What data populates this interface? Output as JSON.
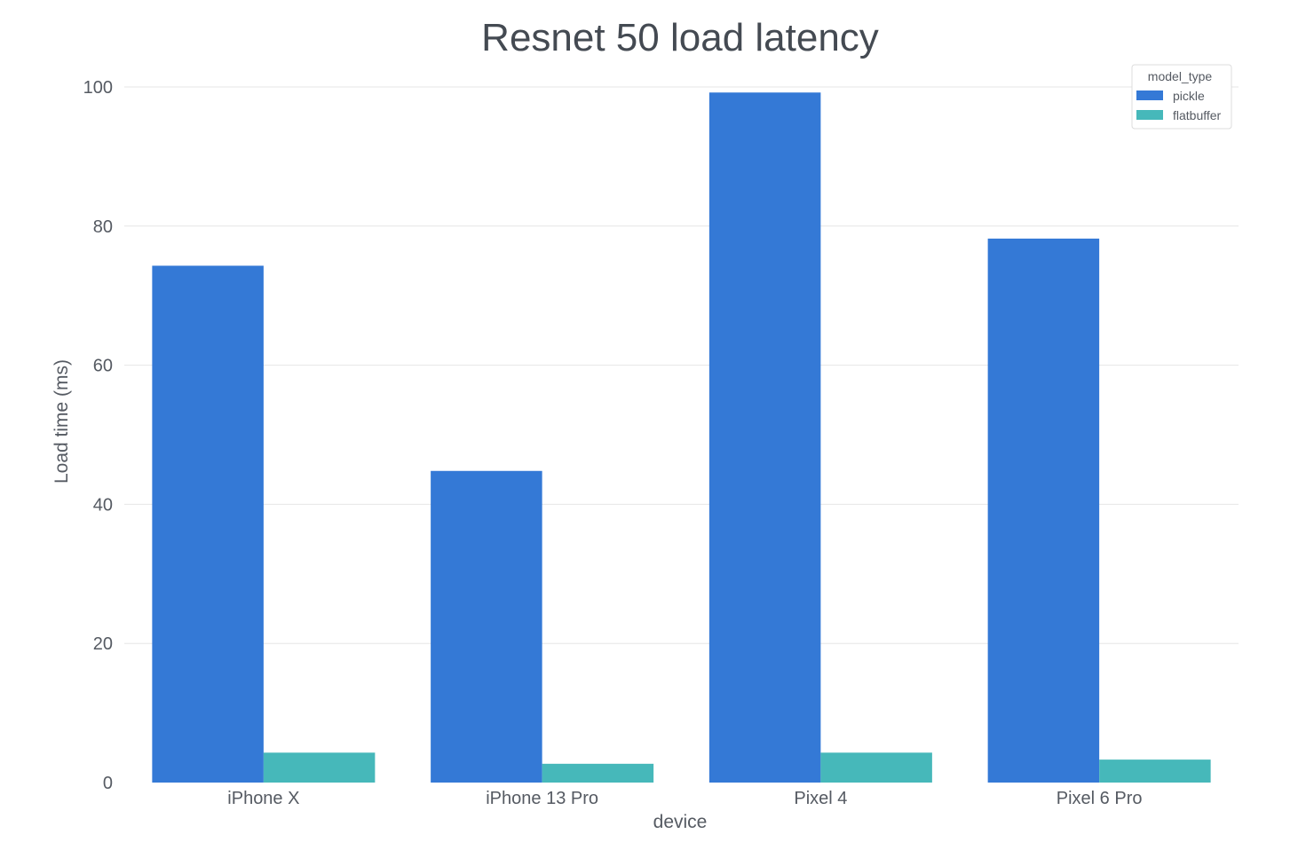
{
  "chart_data": {
    "type": "bar",
    "title": "Resnet 50 load latency",
    "xlabel": "device",
    "ylabel": "Load time (ms)",
    "categories": [
      "iPhone X",
      "iPhone 13 Pro",
      "Pixel 4",
      "Pixel 6 Pro"
    ],
    "series": [
      {
        "name": "pickle",
        "color": "#3479d6",
        "values": [
          74.3,
          44.8,
          99.2,
          78.2
        ]
      },
      {
        "name": "flatbuffer",
        "color": "#46b8ba",
        "values": [
          4.3,
          2.7,
          4.3,
          3.3
        ]
      }
    ],
    "ylim": [
      0,
      100
    ],
    "yticks": [
      0,
      20,
      40,
      60,
      80,
      100
    ],
    "grid": true,
    "legend": {
      "title": "model_type",
      "position": "top-right"
    }
  }
}
